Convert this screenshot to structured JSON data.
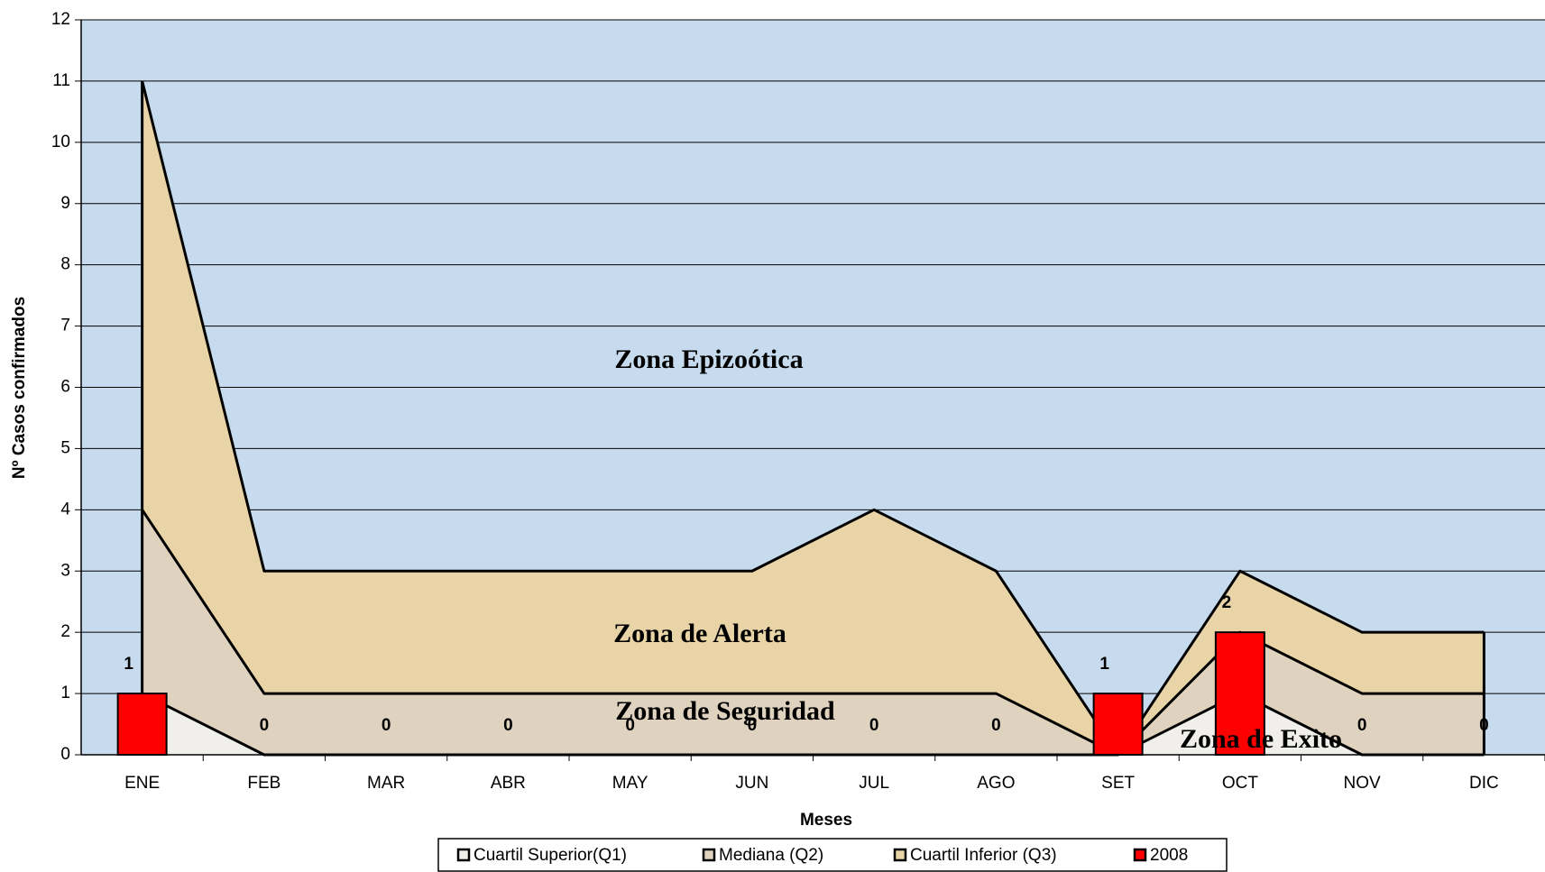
{
  "chart_data": {
    "type": "area",
    "xlabel": "Meses",
    "ylabel": "Nº Casos confirmados",
    "categories": [
      "ENE",
      "FEB",
      "MAR",
      "ABR",
      "MAY",
      "JUN",
      "JUL",
      "AGO",
      "SET",
      "OCT",
      "NOV",
      "DIC"
    ],
    "series": [
      {
        "name": "Cuartil Superior(Q1)",
        "color": "#f0efec",
        "values": [
          1,
          0,
          0,
          0,
          0,
          0,
          0,
          0,
          0,
          1,
          0,
          0
        ]
      },
      {
        "name": "Mediana (Q2)",
        "color": "#dfd2bf",
        "values": [
          4,
          1,
          1,
          1,
          1,
          1,
          1,
          1,
          0,
          2,
          1,
          1
        ]
      },
      {
        "name": "Cuartil Inferior (Q3)",
        "color": "#e8d4a6",
        "values": [
          11,
          3,
          3,
          3,
          3,
          3,
          4,
          3,
          0,
          3,
          2,
          2
        ]
      },
      {
        "name": "2008",
        "color": "#ff0000",
        "type": "bar",
        "values": [
          1,
          0,
          0,
          0,
          0,
          0,
          0,
          0,
          1,
          2,
          0,
          0
        ]
      }
    ],
    "annotations": [
      "Zona Epizoótica",
      "Zona de Alerta",
      "Zona de Seguridad",
      "Zona de Exito"
    ],
    "ylim": [
      0,
      12
    ],
    "yticks": [
      0,
      1,
      2,
      3,
      4,
      5,
      6,
      7,
      8,
      9,
      10,
      11,
      12
    ],
    "grid": true,
    "background": "#c7dbee",
    "legend": "bottom"
  }
}
